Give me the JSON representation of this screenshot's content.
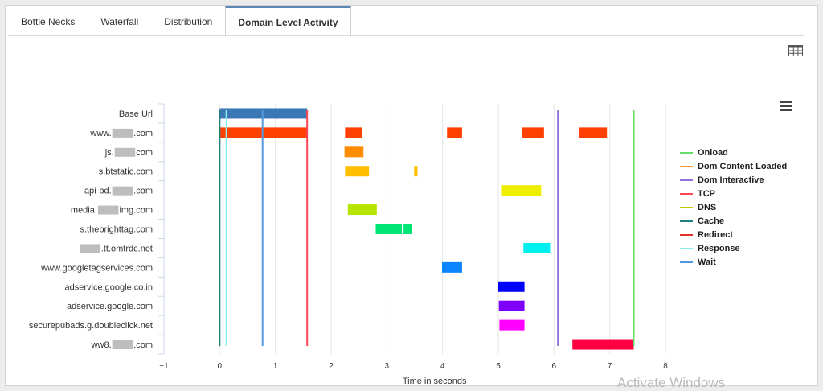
{
  "tabs": [
    {
      "label": "Bottle Necks",
      "active": false
    },
    {
      "label": "Waterfall",
      "active": false
    },
    {
      "label": "Distribution",
      "active": false
    },
    {
      "label": "Domain Level Activity",
      "active": true
    }
  ],
  "icons": {
    "table": "table-icon",
    "menu": "hamburger-menu-icon"
  },
  "watermark": "Activate Windows",
  "chart_data": {
    "type": "bar",
    "orientation": "horizontal-timeline",
    "xlabel": "Time in seconds",
    "xlim": [
      -1,
      8
    ],
    "xticks": [
      "−1",
      "0",
      "1",
      "2",
      "3",
      "4",
      "5",
      "6",
      "7",
      "8"
    ],
    "grid": true,
    "legend_position": "right",
    "categories": [
      {
        "label": "Base Url"
      },
      {
        "prefix": "www.",
        "suffix": ".com"
      },
      {
        "prefix": "js.",
        "suffix": "com"
      },
      {
        "label": "s.btstatic.com"
      },
      {
        "prefix": "api-bd.",
        "suffix": ".com"
      },
      {
        "prefix": "media.",
        "suffix": "img.com"
      },
      {
        "label": "s.thebrighttag.com"
      },
      {
        "prefix": "",
        "suffix": ".tt.omtrdc.net"
      },
      {
        "label": "www.googletagservices.com"
      },
      {
        "label": "adservice.google.co.in"
      },
      {
        "label": "adservice.google.com"
      },
      {
        "label": "securepubads.g.doubleclick.net"
      },
      {
        "prefix": "ww8.",
        "suffix": ".com"
      }
    ],
    "bars": [
      {
        "row": 0,
        "start": 0,
        "end": 1.57,
        "color": "#3a78b5"
      },
      {
        "row": 1,
        "start": 0,
        "end": 1.57,
        "color": "#ff4000"
      },
      {
        "row": 1,
        "start": 2.25,
        "end": 2.56,
        "color": "#ff4000"
      },
      {
        "row": 1,
        "start": 4.08,
        "end": 4.35,
        "color": "#ff4000"
      },
      {
        "row": 1,
        "start": 5.43,
        "end": 5.82,
        "color": "#ff4000"
      },
      {
        "row": 1,
        "start": 6.45,
        "end": 6.95,
        "color": "#ff4000"
      },
      {
        "row": 2,
        "start": 2.24,
        "end": 2.58,
        "color": "#ff8c00"
      },
      {
        "row": 3,
        "start": 2.25,
        "end": 2.68,
        "color": "#ffbf00"
      },
      {
        "row": 3,
        "start": 3.49,
        "end": 3.55,
        "color": "#ffbf00"
      },
      {
        "row": 4,
        "start": 5.05,
        "end": 5.77,
        "color": "#eeee00"
      },
      {
        "row": 5,
        "start": 2.3,
        "end": 2.82,
        "color": "#b6e500"
      },
      {
        "row": 6,
        "start": 2.8,
        "end": 3.27,
        "color": "#00e676"
      },
      {
        "row": 6,
        "start": 3.3,
        "end": 3.45,
        "color": "#00e676"
      },
      {
        "row": 7,
        "start": 5.45,
        "end": 5.93,
        "color": "#00f0f0"
      },
      {
        "row": 8,
        "start": 3.99,
        "end": 4.35,
        "color": "#0a84ff"
      },
      {
        "row": 9,
        "start": 5.0,
        "end": 5.47,
        "color": "#0000ff"
      },
      {
        "row": 10,
        "start": 5.01,
        "end": 5.47,
        "color": "#8000ff"
      },
      {
        "row": 11,
        "start": 5.02,
        "end": 5.47,
        "color": "#ff00ff"
      },
      {
        "row": 12,
        "start": 6.33,
        "end": 7.43,
        "color": "#ff0040"
      }
    ],
    "series": [
      {
        "name": "Onload",
        "color": "#66dd66",
        "x": 7.43
      },
      {
        "name": "Dom Content Loaded",
        "color": "#ff9933",
        "x": null
      },
      {
        "name": "Dom Interactive",
        "color": "#9370db",
        "x": 6.07
      },
      {
        "name": "TCP",
        "color": "#ff4455",
        "x": 1.57
      },
      {
        "name": "DNS",
        "color": "#c8c800",
        "x": null
      },
      {
        "name": "Cache",
        "color": "#1f7f7f",
        "x": 0
      },
      {
        "name": "Redirect",
        "color": "#e03030",
        "x": null
      },
      {
        "name": "Response",
        "color": "#88eeee",
        "x": 0.12
      },
      {
        "name": "Wait",
        "color": "#5599dd",
        "x": 0.77
      }
    ]
  }
}
